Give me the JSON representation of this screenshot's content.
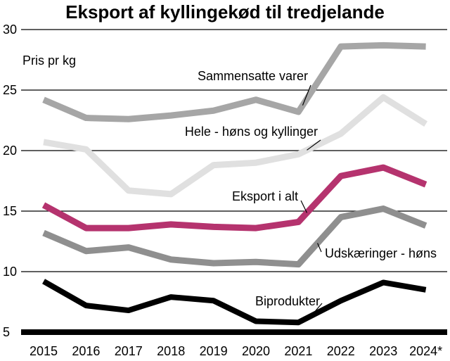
{
  "chart_data": {
    "type": "line",
    "title": "Eksport af kyllingekød til tredjelande",
    "ylabel": "Pris pr kg",
    "xlabel": "",
    "categories": [
      "2015",
      "2016",
      "2017",
      "2018",
      "2019",
      "2020",
      "2021",
      "2022",
      "2023",
      "2024*"
    ],
    "ylim": [
      5,
      30
    ],
    "yticks": [
      5,
      10,
      15,
      20,
      25,
      30
    ],
    "grid": true,
    "series": [
      {
        "name": "Sammensatte varer",
        "color": "#a6a6a6",
        "values": [
          24.2,
          22.7,
          22.6,
          22.9,
          23.3,
          24.2,
          23.2,
          28.6,
          28.7,
          28.6
        ]
      },
      {
        "name": "Hele - høns og kyllinger",
        "color": "#e0e0e0",
        "values": [
          20.7,
          20.1,
          16.7,
          16.4,
          18.8,
          19.0,
          19.7,
          21.4,
          24.4,
          22.2
        ]
      },
      {
        "name": "Eksport i alt",
        "color": "#b5336e",
        "values": [
          15.5,
          13.6,
          13.6,
          13.9,
          13.7,
          13.6,
          14.1,
          17.9,
          18.6,
          17.2
        ]
      },
      {
        "name": "Udskæringer - høns",
        "color": "#8f8f8f",
        "values": [
          13.2,
          11.7,
          12.0,
          11.0,
          10.7,
          10.8,
          10.6,
          14.5,
          15.2,
          13.8
        ]
      },
      {
        "name": "Biprodukter",
        "color": "#000000",
        "values": [
          9.2,
          7.2,
          6.8,
          7.9,
          7.6,
          5.9,
          5.8,
          7.6,
          9.1,
          8.5
        ]
      }
    ]
  }
}
